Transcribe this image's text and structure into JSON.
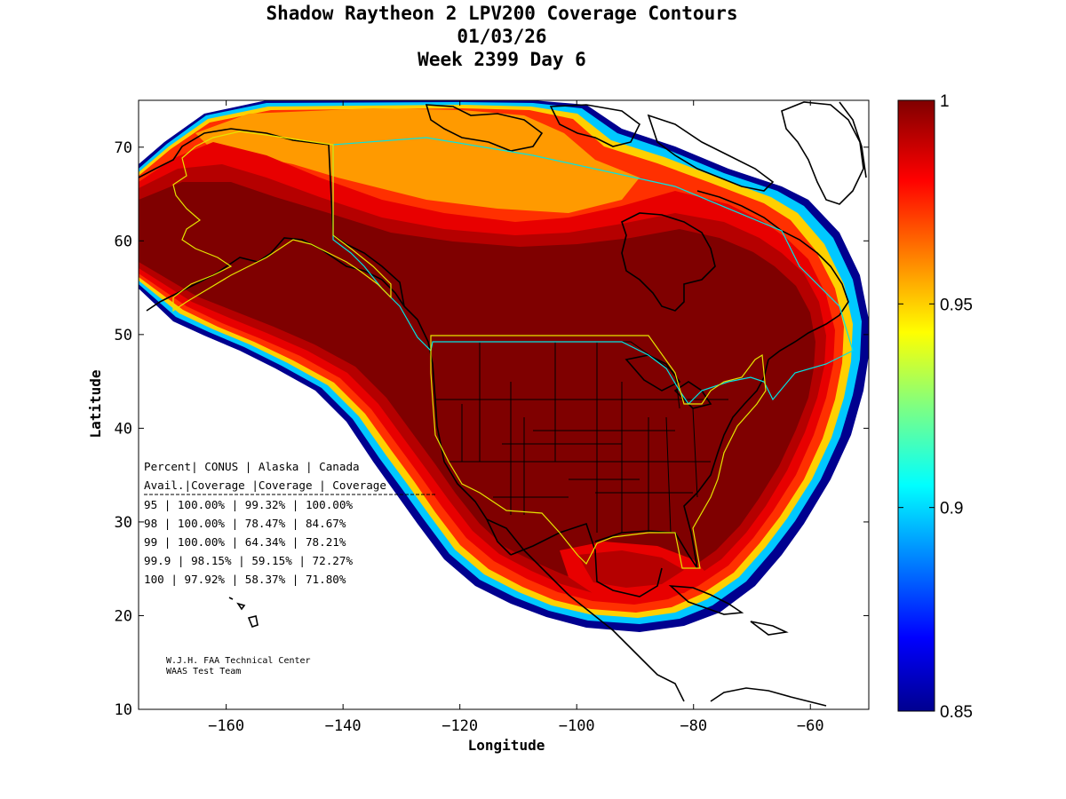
{
  "title": {
    "line1": "Shadow Raytheon 2 LPV200 Coverage Contours",
    "line2": "01/03/26",
    "line3": "Week 2399 Day 6"
  },
  "axes": {
    "xlabel": "Longitude",
    "ylabel": "Latitude",
    "xticks": [
      -160,
      -140,
      -120,
      -100,
      -80,
      -60
    ],
    "yticks": [
      10,
      20,
      30,
      40,
      50,
      60,
      70
    ],
    "xlim": [
      -175,
      -50
    ],
    "ylim": [
      10,
      75
    ]
  },
  "colorbar": {
    "ticks": [
      "1",
      "0.95",
      "0.9",
      "0.85"
    ],
    "range": [
      0.85,
      1.0
    ],
    "colormap": "jet"
  },
  "coverage_table": {
    "header1": "Percent| CONUS   | Alaska  | Canada",
    "header2": " Avail.|Coverage |Coverage | Coverage",
    "rows": [
      "  95   | 100.00%  | 99.32% | 100.00%",
      "  98   | 100.00%  | 78.47% | 84.67%",
      "  99   | 100.00%  | 64.34% | 78.21%",
      "99.9   | 98.15%  | 59.15% | 72.27%",
      " 100   | 97.92%  | 58.37% | 71.80%"
    ]
  },
  "credits": {
    "line1": "W.J.H. FAA Technical Center",
    "line2": "WAAS Test Team"
  },
  "chart_data": {
    "type": "heatmap",
    "title": "Shadow Raytheon 2 LPV200 Coverage Contours",
    "xlabel": "Longitude",
    "ylabel": "Latitude",
    "xlim": [
      -175,
      -50
    ],
    "ylim": [
      10,
      75
    ],
    "value_range": [
      0.85,
      1.0
    ],
    "regions": [
      {
        "name": "CONUS",
        "coverage_95": 100.0,
        "coverage_98": 100.0,
        "coverage_99": 100.0,
        "coverage_99_9": 98.15,
        "coverage_100": 97.92
      },
      {
        "name": "Alaska",
        "coverage_95": 99.32,
        "coverage_98": 78.47,
        "coverage_99": 64.34,
        "coverage_99_9": 59.15,
        "coverage_100": 58.37
      },
      {
        "name": "Canada",
        "coverage_95": 100.0,
        "coverage_98": 84.67,
        "coverage_99": 78.21,
        "coverage_99_9": 72.27,
        "coverage_100": 71.8
      }
    ]
  },
  "colors": {
    "c100": "#7f0000",
    "c99": "#b50000",
    "c98": "#e80000",
    "c97": "#ff3000",
    "c96": "#ff6a00",
    "c95": "#ff9a00",
    "c94": "#ffd000",
    "c93": "#e8ff18",
    "c92": "#7fff80",
    "c91": "#18ffe8",
    "c90": "#00c8ff",
    "c88": "#0070ff",
    "c86": "#0010ff",
    "c85": "#00008f",
    "border_canada": "#00e5e5",
    "border_alaska": "#e5e500"
  }
}
